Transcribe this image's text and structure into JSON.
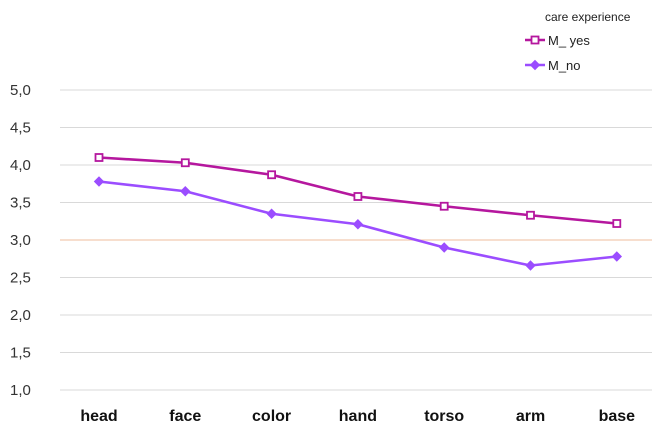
{
  "chart_data": {
    "type": "line",
    "title": "",
    "xlabel": "",
    "ylabel": "",
    "categories": [
      "head",
      "face",
      "color",
      "hand",
      "torso",
      "arm",
      "base"
    ],
    "ylim": [
      1.0,
      5.0
    ],
    "yticks": [
      "1,0",
      "1,5",
      "2,0",
      "2,5",
      "3,0",
      "3,5",
      "4,0",
      "4,5",
      "5,0"
    ],
    "ytick_values": [
      1.0,
      1.5,
      2.0,
      2.5,
      3.0,
      3.5,
      4.0,
      4.5,
      5.0
    ],
    "reference_line": {
      "value": 3.0,
      "color": "#f2c9b0"
    },
    "grid": true,
    "legend": {
      "title": "care experience",
      "placement": "top-right"
    },
    "series": [
      {
        "name": "M_ yes",
        "color": "#b5179e",
        "marker": "square",
        "values": [
          4.1,
          4.03,
          3.87,
          3.58,
          3.45,
          3.33,
          3.22
        ]
      },
      {
        "name": "M_no",
        "color": "#9b4dff",
        "marker": "diamond",
        "values": [
          3.78,
          3.65,
          3.35,
          3.21,
          2.9,
          2.66,
          2.78
        ]
      }
    ]
  }
}
